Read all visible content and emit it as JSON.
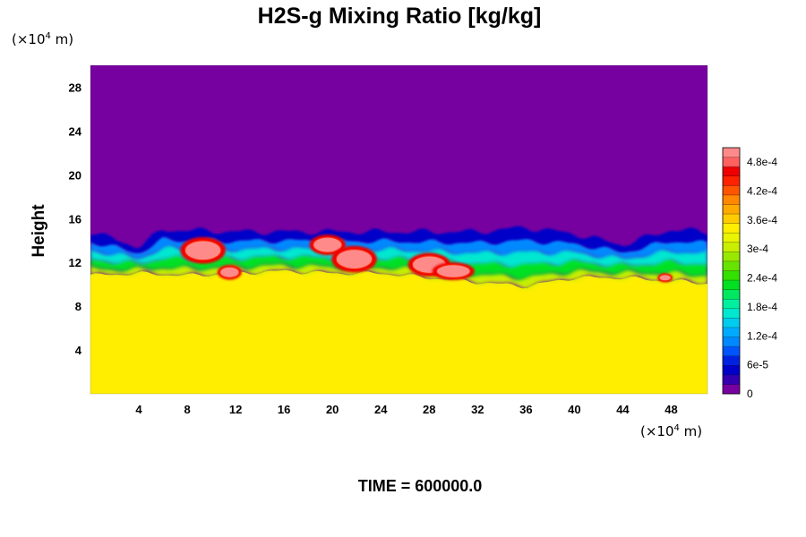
{
  "chart_data": {
    "type": "heatmap",
    "title": "H2S-g Mixing Ratio [kg/kg]",
    "ylabel": "Height",
    "xlabel": "",
    "x_unit_prefix": "(×10",
    "x_unit_exp": "4",
    "x_unit_suffix": " m)",
    "y_unit_prefix": "(×10",
    "y_unit_exp": "4",
    "y_unit_suffix": " m)",
    "xlim": [
      0,
      51
    ],
    "ylim": [
      0,
      30
    ],
    "x_ticks": [
      4,
      8,
      12,
      16,
      20,
      24,
      28,
      32,
      36,
      40,
      44,
      48
    ],
    "y_ticks": [
      4,
      8,
      12,
      16,
      20,
      24,
      28
    ],
    "field": {
      "lower_layer_value": 0.00035,
      "upper_layer_value": 0,
      "interface_height_profile": [
        {
          "x": 0,
          "y": 10.8
        },
        {
          "x": 4,
          "y": 11.0
        },
        {
          "x": 8,
          "y": 10.8
        },
        {
          "x": 12,
          "y": 11.0
        },
        {
          "x": 16,
          "y": 11.2
        },
        {
          "x": 20,
          "y": 11.0
        },
        {
          "x": 24,
          "y": 11.0
        },
        {
          "x": 28,
          "y": 10.6
        },
        {
          "x": 32,
          "y": 10.2
        },
        {
          "x": 36,
          "y": 9.8
        },
        {
          "x": 40,
          "y": 10.6
        },
        {
          "x": 44,
          "y": 10.6
        },
        {
          "x": 48,
          "y": 10.3
        },
        {
          "x": 51,
          "y": 10.1
        }
      ],
      "mixing_top_profile": [
        {
          "x": 0,
          "y": 14.8
        },
        {
          "x": 4,
          "y": 13.4
        },
        {
          "x": 6,
          "y": 15.0
        },
        {
          "x": 12,
          "y": 14.8
        },
        {
          "x": 16,
          "y": 14.8
        },
        {
          "x": 24,
          "y": 14.8
        },
        {
          "x": 28,
          "y": 14.8
        },
        {
          "x": 32,
          "y": 14.8
        },
        {
          "x": 36,
          "y": 15.2
        },
        {
          "x": 40,
          "y": 14.6
        },
        {
          "x": 44,
          "y": 13.6
        },
        {
          "x": 48,
          "y": 15.0
        },
        {
          "x": 51,
          "y": 14.8
        }
      ],
      "high_value_patches": [
        {
          "x": 9.3,
          "y": 13.1,
          "rx": 1.5,
          "ry": 0.9
        },
        {
          "x": 19.6,
          "y": 13.6,
          "rx": 1.2,
          "ry": 0.7
        },
        {
          "x": 21.8,
          "y": 12.3,
          "rx": 1.5,
          "ry": 0.9
        },
        {
          "x": 28.0,
          "y": 11.8,
          "rx": 1.4,
          "ry": 0.8
        },
        {
          "x": 30.0,
          "y": 11.2,
          "rx": 1.4,
          "ry": 0.6
        },
        {
          "x": 11.5,
          "y": 11.1,
          "rx": 0.8,
          "ry": 0.5
        },
        {
          "x": 47.5,
          "y": 10.6,
          "rx": 0.5,
          "ry": 0.3
        }
      ]
    },
    "colorbar": {
      "min": 0,
      "max": 0.00051,
      "tick_labels": [
        "0",
        "6e-5",
        "1.2e-4",
        "1.8e-4",
        "2.4e-4",
        "3e-4",
        "3.6e-4",
        "4.2e-4",
        "4.8e-4"
      ],
      "tick_values": [
        0,
        6e-05,
        0.00012,
        0.00018,
        0.00024,
        0.0003,
        0.00036,
        0.00042,
        0.00048
      ],
      "colors": [
        "#7700a0",
        "#3300b0",
        "#0000c8",
        "#0022e0",
        "#0055ff",
        "#0088ff",
        "#00aaff",
        "#00ccf0",
        "#00e8d0",
        "#00f0a0",
        "#00e860",
        "#00e020",
        "#33e000",
        "#66e400",
        "#99e800",
        "#c8ee00",
        "#e8f400",
        "#ffee00",
        "#ffcc00",
        "#ffaa00",
        "#ff8800",
        "#ff5500",
        "#ff2200",
        "#ee0000",
        "#ff6060",
        "#ff8a8a"
      ]
    },
    "time_label": "TIME = 600000.0"
  }
}
